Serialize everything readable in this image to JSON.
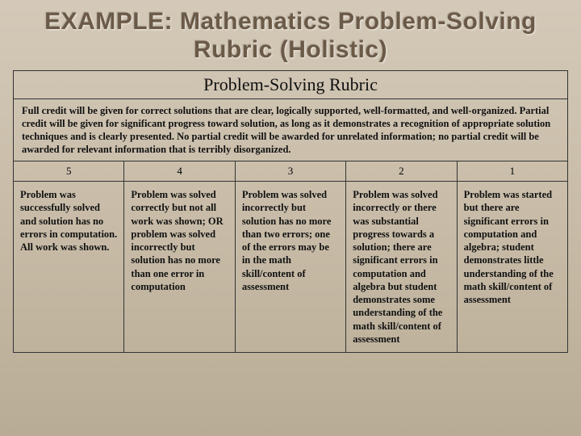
{
  "title": "EXAMPLE: Mathematics Problem-Solving Rubric (Holistic)",
  "rubric": {
    "header": "Problem-Solving Rubric",
    "intro": "Full credit will be given for correct solutions that are clear, logically supported, well-formatted, and well-organized. Partial credit will be given for significant progress toward solution, as long as it demonstrates a recognition of appropriate solution techniques and is clearly presented. No partial credit will be awarded for unrelated information; no partial credit will be awarded for relevant information that is terribly disorganized.",
    "scores": [
      "5",
      "4",
      "3",
      "2",
      "1"
    ],
    "descriptions": [
      "Problem was successfully solved and solution has no errors in computation. All work was shown.",
      "Problem was solved correctly but not all work was shown; OR problem was solved incorrectly but solution has no more than one error in computation",
      "Problem was solved incorrectly but solution has no more than two errors; one of the errors may be in the math skill/content of assessment",
      "Problem was solved incorrectly or there was substantial progress towards a solution; there are significant errors in computation and algebra but student demonstrates some understanding of the math skill/content of assessment",
      "Problem was started but there are significant errors in computation and algebra; student demonstrates little understanding of the math skill/content of assessment"
    ]
  },
  "colors": {
    "title_color": "#6b5a47",
    "border_color": "#333333",
    "text_color": "#111111",
    "bg_top": "#d4c9b8",
    "bg_bottom": "#b8ac96"
  }
}
